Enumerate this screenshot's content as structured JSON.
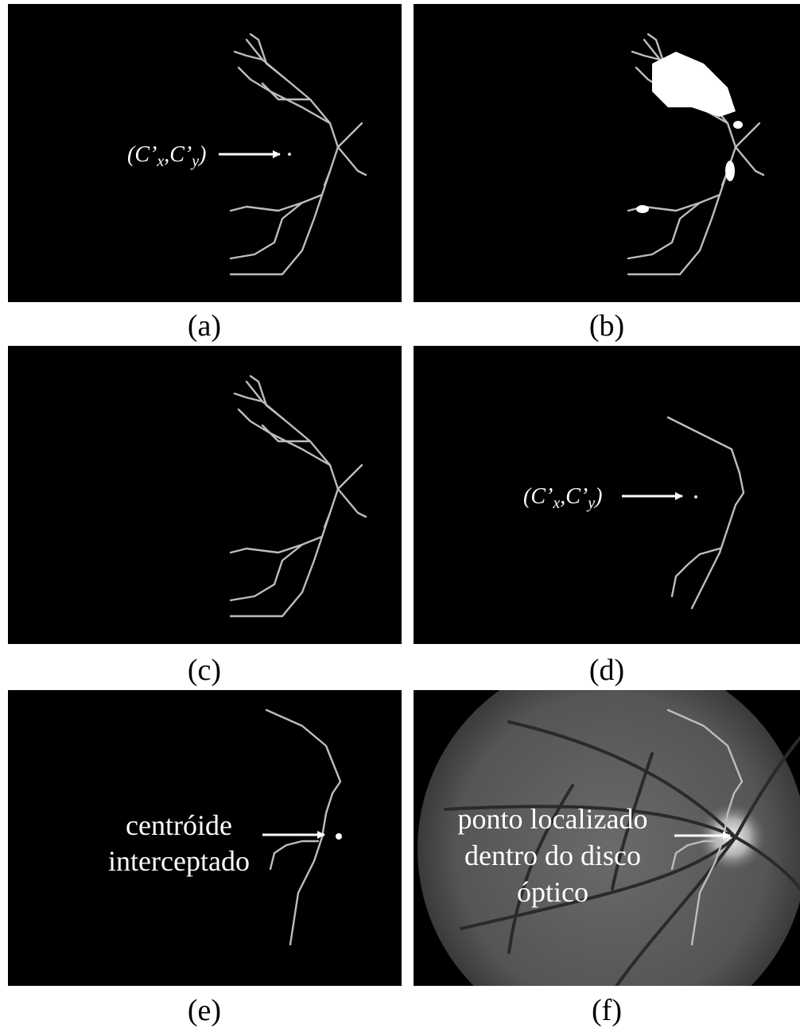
{
  "panels": [
    {
      "caption": "(a)",
      "annotation": {
        "parts": [
          "(C’",
          "x",
          ",C’",
          "y",
          ")"
        ]
      }
    },
    {
      "caption": "(b)"
    },
    {
      "caption": "(c)"
    },
    {
      "caption": "(d)",
      "annotation": {
        "parts": [
          "(C’",
          "x",
          ",C’",
          "y",
          ")"
        ]
      }
    },
    {
      "caption": "(e)",
      "annotation": {
        "lines": [
          "centróide",
          "interceptado"
        ]
      }
    },
    {
      "caption": "(f)",
      "annotation": {
        "lines": [
          "ponto localizado",
          "dentro do disco",
          "óptico"
        ]
      }
    }
  ]
}
